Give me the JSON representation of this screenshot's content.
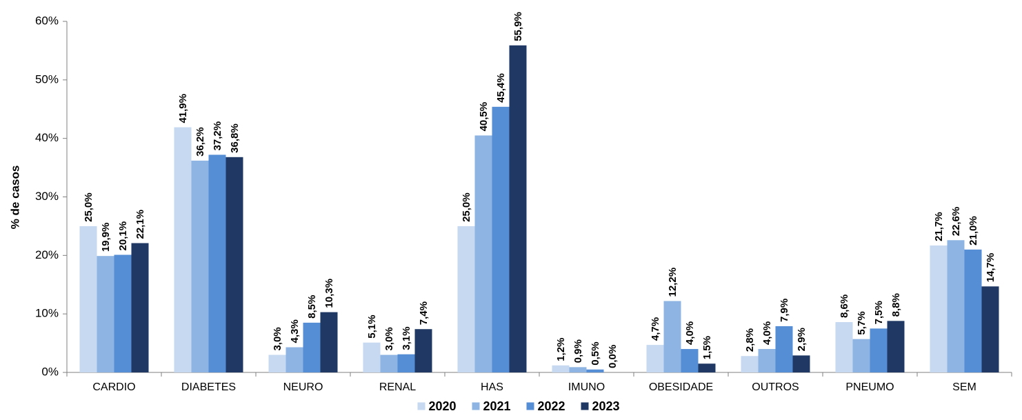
{
  "chart_data": {
    "type": "bar",
    "ylabel": "% de casos",
    "xlabel": "",
    "ylim": [
      0,
      60
    ],
    "yticks": [
      0,
      10,
      20,
      30,
      40,
      50,
      60
    ],
    "ytick_labels": [
      "0%",
      "10%",
      "20%",
      "30%",
      "40%",
      "50%",
      "60%"
    ],
    "grid": false,
    "legend_position": "bottom",
    "categories": [
      "CARDIO",
      "DIABETES",
      "NEURO",
      "RENAL",
      "HAS",
      "IMUNO",
      "OBESIDADE",
      "OUTROS",
      "PNEUMO",
      "SEM"
    ],
    "series": [
      {
        "name": "2020",
        "color": "#c6d9f1",
        "values": [
          25.0,
          41.9,
          3.0,
          5.1,
          25.0,
          1.2,
          4.7,
          2.8,
          8.6,
          21.7
        ],
        "labels": [
          "25,0%",
          "41,9%",
          "3,0%",
          "5,1%",
          "25,0%",
          "1,2%",
          "4,7%",
          "2,8%",
          "8,6%",
          "21,7%"
        ]
      },
      {
        "name": "2021",
        "color": "#8db4e2",
        "values": [
          19.9,
          36.2,
          4.3,
          3.0,
          40.5,
          0.9,
          12.2,
          4.0,
          5.7,
          22.6
        ],
        "labels": [
          "19,9%",
          "36,2%",
          "4,3%",
          "3,0%",
          "40,5%",
          "0,9%",
          "12,2%",
          "4,0%",
          "5,7%",
          "22,6%"
        ]
      },
      {
        "name": "2022",
        "color": "#558ed5",
        "values": [
          20.1,
          37.2,
          8.5,
          3.1,
          45.4,
          0.5,
          4.0,
          7.9,
          7.5,
          21.0
        ],
        "labels": [
          "20,1%",
          "37,2%",
          "8,5%",
          "3,1%",
          "45,4%",
          "0,5%",
          "4,0%",
          "7,9%",
          "7,5%",
          "21,0%"
        ]
      },
      {
        "name": "2023",
        "color": "#1f3864",
        "values": [
          22.1,
          36.8,
          10.3,
          7.4,
          55.9,
          0.0,
          1.5,
          2.9,
          8.8,
          14.7
        ],
        "labels": [
          "22,1%",
          "36,8%",
          "10,3%",
          "7,4%",
          "55,9%",
          "0,0%",
          "1,5%",
          "2,9%",
          "8,8%",
          "14,7%"
        ]
      }
    ]
  }
}
